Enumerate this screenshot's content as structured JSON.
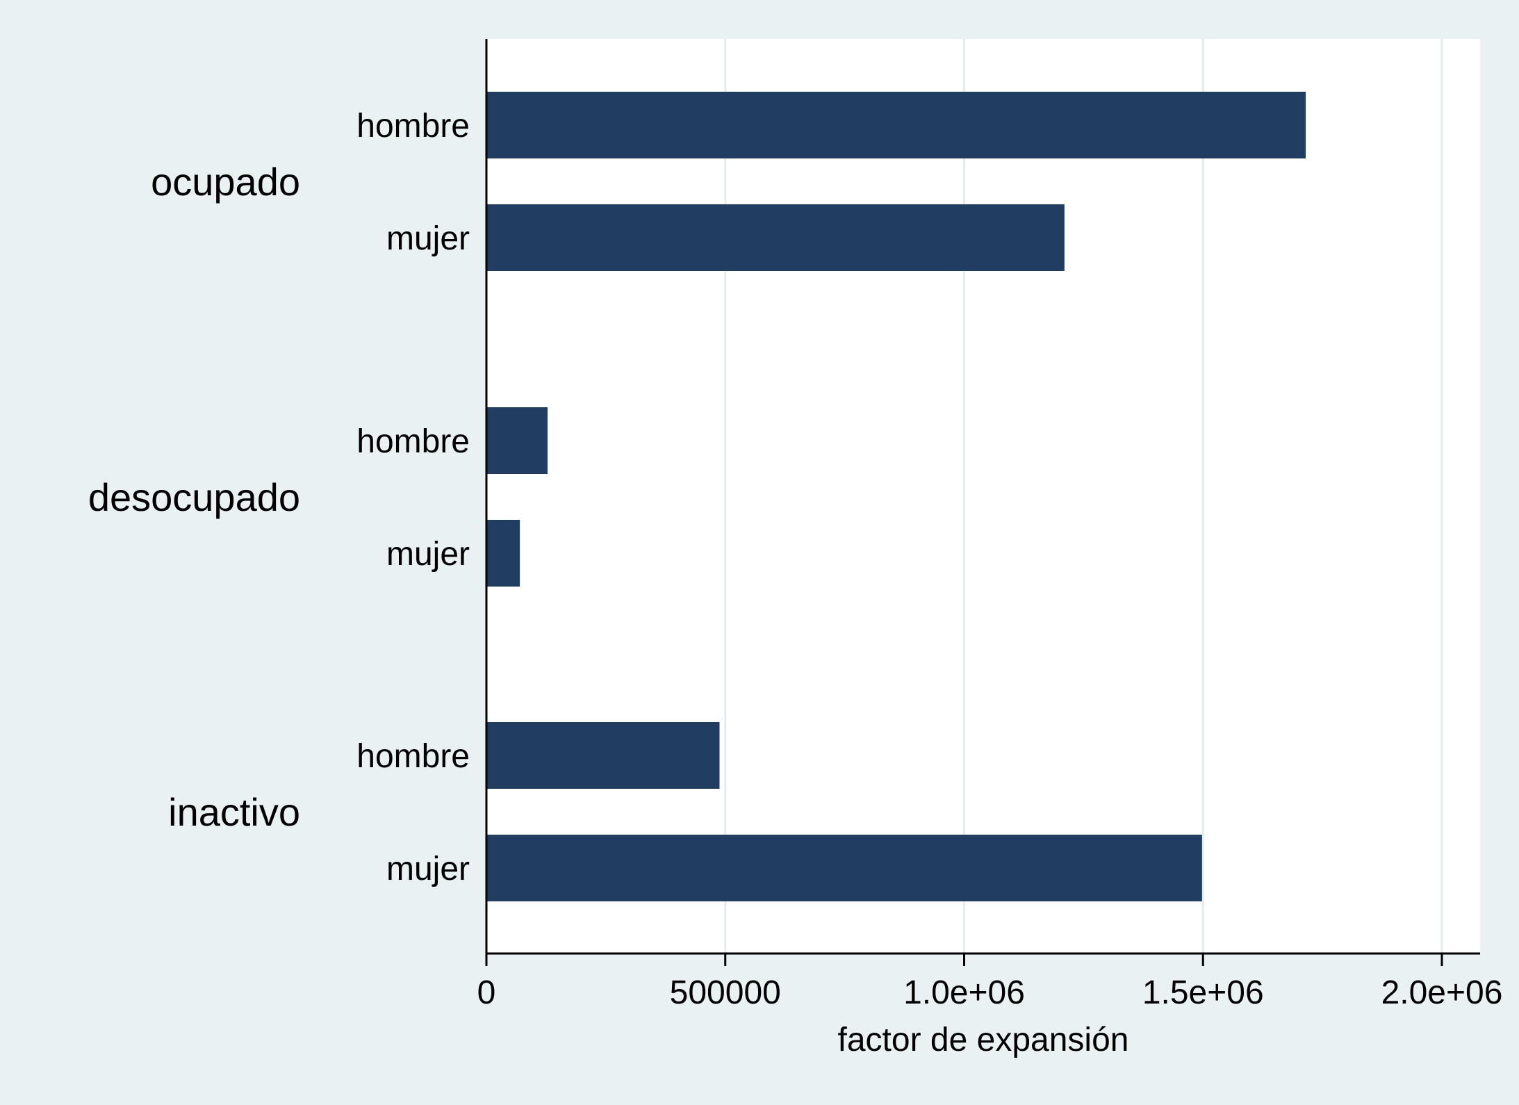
{
  "chart_data": {
    "type": "bar",
    "orientation": "horizontal",
    "groups": [
      {
        "name": "ocupado",
        "bars": [
          {
            "label": "hombre",
            "value": 1715000
          },
          {
            "label": "mujer",
            "value": 1210000
          }
        ]
      },
      {
        "name": "desocupado",
        "bars": [
          {
            "label": "hombre",
            "value": 128000
          },
          {
            "label": "mujer",
            "value": 70000
          }
        ]
      },
      {
        "name": "inactivo",
        "bars": [
          {
            "label": "hombre",
            "value": 488000
          },
          {
            "label": "mujer",
            "value": 1498000
          }
        ]
      }
    ],
    "xlabel": "factor de expansión",
    "xlim": [
      0,
      2080000
    ],
    "xticks": [
      0,
      500000,
      1000000,
      1500000,
      2000000
    ],
    "xtick_labels": [
      "0",
      "500000",
      "1.0e+06",
      "1.5e+06",
      "2.0e+06"
    ],
    "grid": "vertical",
    "bar_color": "#213e62",
    "background": "#eaf1f3",
    "plot_background": "#ffffff",
    "grid_color": "#e4ecef"
  }
}
